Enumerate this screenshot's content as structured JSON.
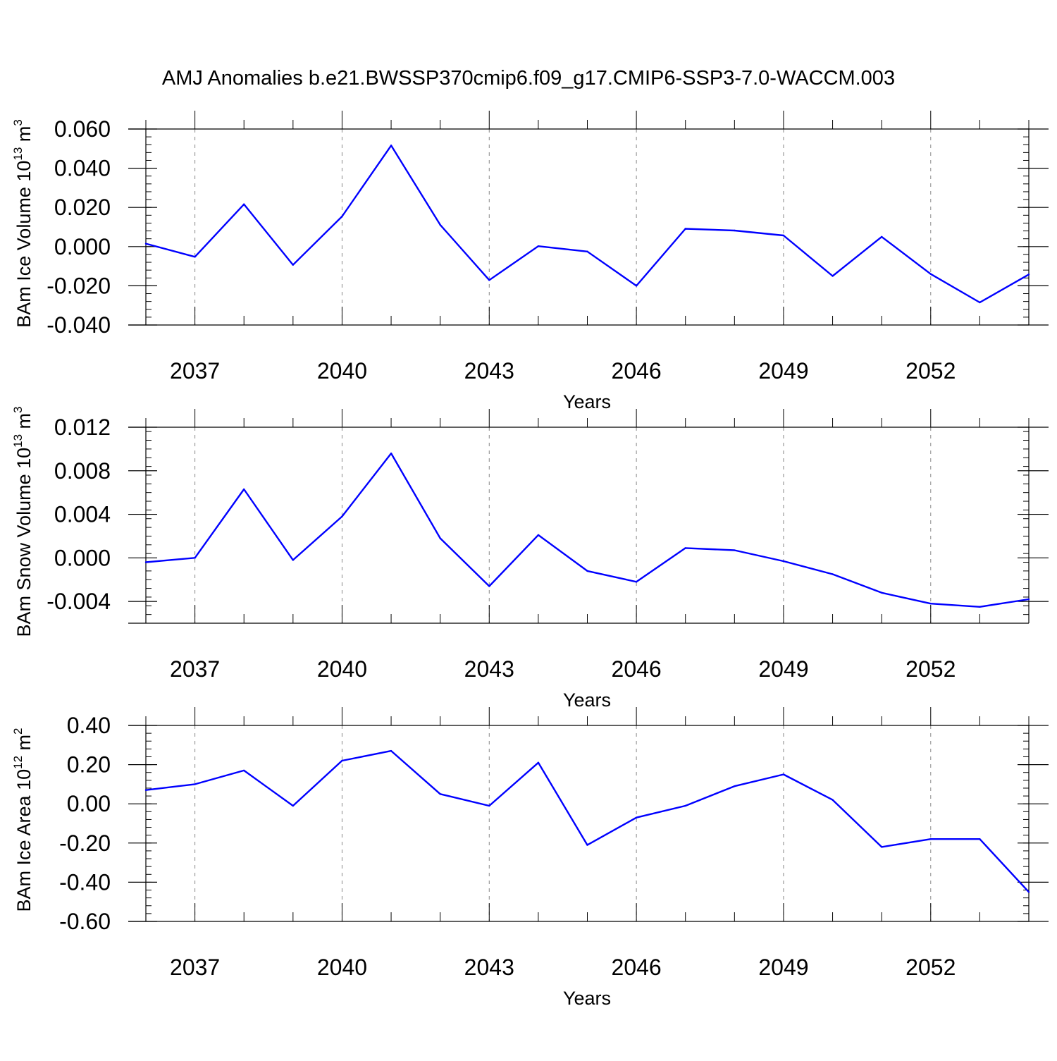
{
  "title": "AMJ Anomalies b.e21.BWSSP370cmip6.f09_g17.CMIP6-SSP3-7.0-WACCM.003",
  "colors": {
    "line": "#0000ff",
    "axis": "#000000",
    "grid": "#888888"
  },
  "chart_data": [
    {
      "type": "line",
      "ylabel": {
        "main": "BAm Ice Volume 10",
        "sup": "13",
        "unit": " m",
        "unit_sup": "3"
      },
      "xlabel": "Years",
      "xlim": [
        2036,
        2054
      ],
      "ylim": [
        -0.04,
        0.06
      ],
      "yticks": [
        -0.04,
        -0.02,
        0.0,
        0.02,
        0.04,
        0.06
      ],
      "ytick_labels": [
        "-0.040",
        "-0.020",
        "0.000",
        "0.020",
        "0.040",
        "0.060"
      ],
      "xticks": [
        2037,
        2040,
        2043,
        2046,
        2049,
        2052
      ],
      "xtick_labels": [
        "2037",
        "2040",
        "2043",
        "2046",
        "2049",
        "2052"
      ],
      "grid": "vertical dashed at labeled years",
      "series": [
        {
          "x": [
            2036,
            2037,
            2038,
            2039,
            2040,
            2041,
            2042,
            2043,
            2044,
            2045,
            2046,
            2047,
            2048,
            2049,
            2050,
            2051,
            2052,
            2053,
            2054
          ],
          "y": [
            0.0015,
            -0.0052,
            0.0216,
            -0.0093,
            0.0154,
            0.0516,
            0.0111,
            -0.0171,
            0.0002,
            -0.0025,
            -0.02,
            0.0091,
            0.0082,
            0.0057,
            -0.015,
            0.005,
            -0.014,
            -0.0285,
            -0.0142
          ]
        }
      ]
    },
    {
      "type": "line",
      "ylabel": {
        "main": "BAm Snow Volume 10",
        "sup": "13",
        "unit": " m",
        "unit_sup": "3"
      },
      "xlabel": "Years",
      "xlim": [
        2036,
        2054
      ],
      "ylim": [
        -0.006,
        0.012
      ],
      "yticks": [
        -0.004,
        0.0,
        0.004,
        0.008,
        0.012
      ],
      "ytick_labels": [
        "-0.004",
        "0.000",
        "0.004",
        "0.008",
        "0.012"
      ],
      "xticks": [
        2037,
        2040,
        2043,
        2046,
        2049,
        2052
      ],
      "xtick_labels": [
        "2037",
        "2040",
        "2043",
        "2046",
        "2049",
        "2052"
      ],
      "grid": "vertical dashed at labeled years",
      "series": [
        {
          "x": [
            2036,
            2037,
            2038,
            2039,
            2040,
            2041,
            2042,
            2043,
            2044,
            2045,
            2046,
            2047,
            2048,
            2049,
            2050,
            2051,
            2052,
            2053,
            2054
          ],
          "y": [
            -0.0004,
            0.0,
            0.0063,
            -0.0002,
            0.0038,
            0.0096,
            0.0018,
            -0.0026,
            0.0021,
            -0.0012,
            -0.0022,
            0.0009,
            0.0007,
            -0.0003,
            -0.0015,
            -0.0032,
            -0.0042,
            -0.0045,
            -0.0038
          ]
        }
      ]
    },
    {
      "type": "line",
      "ylabel": {
        "main": "BAm Ice Area 10",
        "sup": "12",
        "unit": " m",
        "unit_sup": "2"
      },
      "xlabel": "Years",
      "xlim": [
        2036,
        2054
      ],
      "ylim": [
        -0.6,
        0.4
      ],
      "yticks": [
        -0.6,
        -0.4,
        -0.2,
        0.0,
        0.2,
        0.4
      ],
      "ytick_labels": [
        "-0.60",
        "-0.40",
        "-0.20",
        "0.00",
        "0.20",
        "0.40"
      ],
      "xticks": [
        2037,
        2040,
        2043,
        2046,
        2049,
        2052
      ],
      "xtick_labels": [
        "2037",
        "2040",
        "2043",
        "2046",
        "2049",
        "2052"
      ],
      "grid": "vertical dashed at labeled years",
      "series": [
        {
          "x": [
            2036,
            2037,
            2038,
            2039,
            2040,
            2041,
            2042,
            2043,
            2044,
            2045,
            2046,
            2047,
            2048,
            2049,
            2050,
            2051,
            2052,
            2053,
            2054
          ],
          "y": [
            0.07,
            0.1,
            0.17,
            -0.01,
            0.22,
            0.27,
            0.05,
            -0.01,
            0.21,
            -0.21,
            -0.07,
            -0.01,
            0.09,
            0.15,
            0.02,
            -0.22,
            -0.18,
            -0.18,
            -0.45
          ]
        }
      ]
    }
  ]
}
